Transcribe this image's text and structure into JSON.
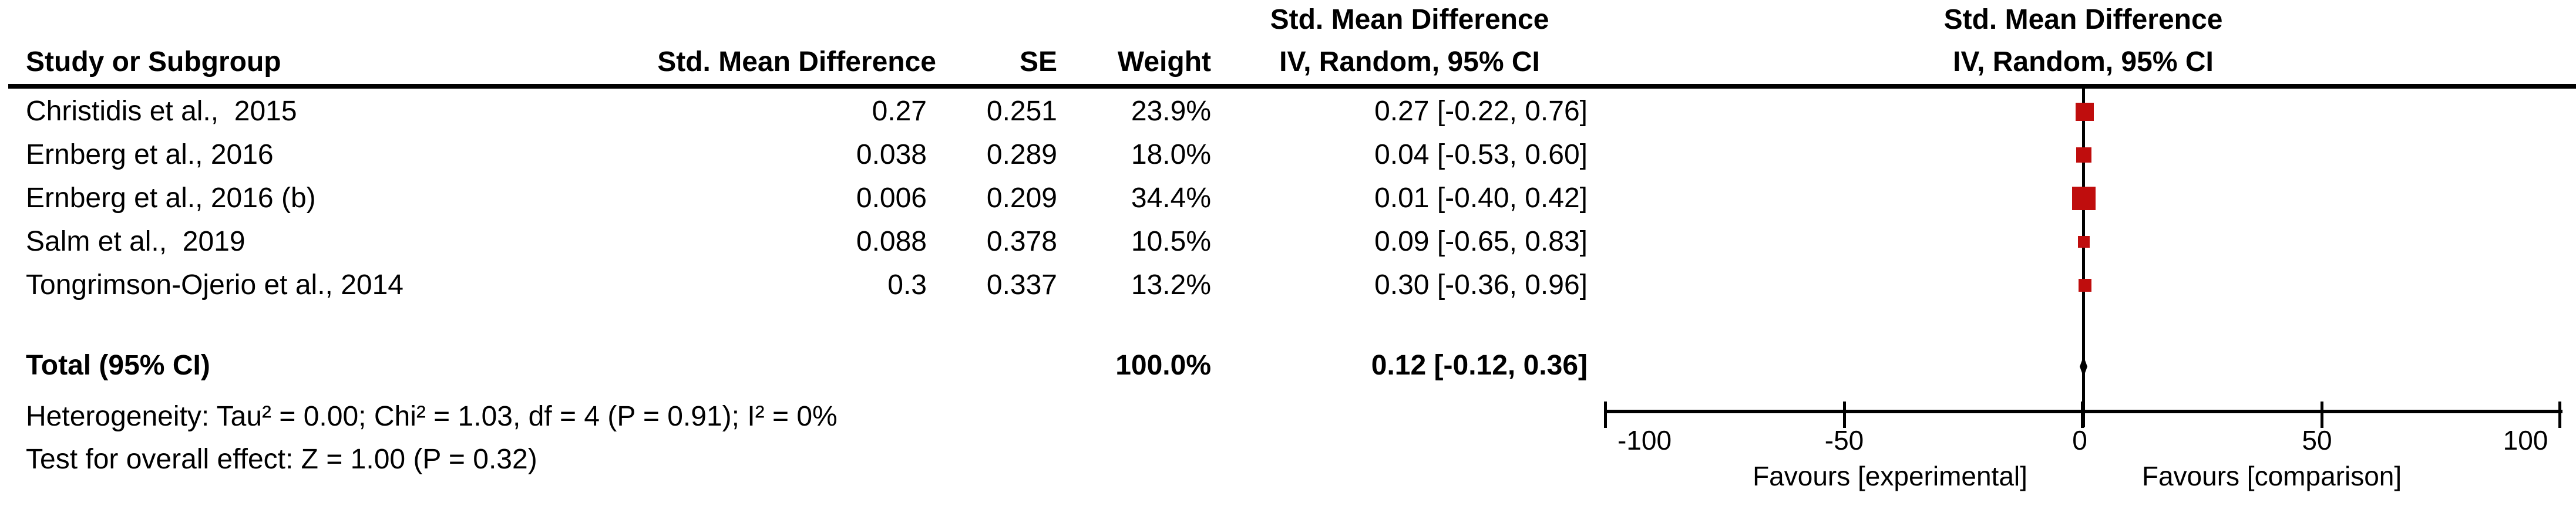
{
  "table": {
    "headers": {
      "study": "Study or Subgroup",
      "smd": "Std. Mean Difference",
      "se": "SE",
      "weight": "Weight",
      "ci_line1": "Std. Mean Difference",
      "ci_line2": "IV, Random, 95% CI"
    },
    "rows": [
      {
        "study": "Christidis et al.,  2015",
        "smd": "0.27",
        "se": "0.251",
        "weight": "23.9%",
        "ci": "0.27 [-0.22, 0.76]"
      },
      {
        "study": "Ernberg et al., 2016",
        "smd": "0.038",
        "se": "0.289",
        "weight": "18.0%",
        "ci": "0.04 [-0.53, 0.60]"
      },
      {
        "study": "Ernberg et al., 2016 (b)",
        "smd": "0.006",
        "se": "0.209",
        "weight": "34.4%",
        "ci": "0.01 [-0.40, 0.42]"
      },
      {
        "study": "Salm et al.,  2019",
        "smd": "0.088",
        "se": "0.378",
        "weight": "10.5%",
        "ci": "0.09 [-0.65, 0.83]"
      },
      {
        "study": "Tongrimson-Ojerio et al., 2014",
        "smd": "0.3",
        "se": "0.337",
        "weight": "13.2%",
        "ci": "0.30 [-0.36, 0.96]"
      }
    ],
    "total": {
      "label": "Total (95% CI)",
      "weight": "100.0%",
      "ci": "0.12 [-0.12, 0.36]"
    },
    "heterogeneity": "Heterogeneity: Tau² = 0.00; Chi² = 1.03, df = 4 (P = 0.91); I² = 0%",
    "overall_effect": "Test for overall effect: Z = 1.00 (P = 0.32)"
  },
  "plot": {
    "header_line1": "Std. Mean Difference",
    "header_line2": "IV, Random, 95% CI",
    "favours_left": "Favours [experimental]",
    "favours_right": "Favours [comparison]",
    "marker_color": "#bf0d0d"
  },
  "chart_data": {
    "type": "forest",
    "title": "Std. Mean Difference, IV, Random, 95% CI",
    "studies": [
      "Christidis et al., 2015",
      "Ernberg et al., 2016",
      "Ernberg et al., 2016 (b)",
      "Salm et al., 2019",
      "Tongrimson-Ojerio et al., 2014"
    ],
    "raw_smd": [
      0.27,
      0.038,
      0.006,
      0.088,
      0.3
    ],
    "se": [
      0.251,
      0.289,
      0.209,
      0.378,
      0.337
    ],
    "weights_pct": [
      23.9,
      18.0,
      34.4,
      10.5,
      13.2
    ],
    "estimates": [
      0.27,
      0.04,
      0.01,
      0.09,
      0.3
    ],
    "ci_lower": [
      -0.22,
      -0.53,
      -0.4,
      -0.65,
      -0.36
    ],
    "ci_upper": [
      0.76,
      0.6,
      0.42,
      0.83,
      0.96
    ],
    "total": {
      "estimate": 0.12,
      "ci_lower": -0.12,
      "ci_upper": 0.36,
      "weight_pct": 100.0
    },
    "heterogeneity": {
      "tau2": 0.0,
      "chi2": 1.03,
      "df": 4,
      "p": 0.91,
      "i2_pct": 0
    },
    "overall_effect": {
      "z": 1.0,
      "p": 0.32
    },
    "model": "IV, Random",
    "xlim": [
      -100,
      100
    ],
    "xticks": [
      -100,
      -50,
      0,
      50,
      100
    ],
    "x_axis_labels": [
      "Favours [experimental]",
      "Favours [comparison]"
    ],
    "grid": false
  }
}
